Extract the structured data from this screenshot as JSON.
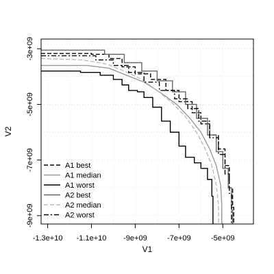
{
  "chart_data": {
    "type": "line",
    "title": "",
    "xlabel": "V1",
    "ylabel": "V2",
    "xlim": [
      -13300000000,
      -3600000000
    ],
    "ylim": [
      -9300000000,
      -2650000000
    ],
    "x_ticks": [
      {
        "value": -13000000000,
        "label": "-1.3e+10"
      },
      {
        "value": -11000000000,
        "label": "-1.1e+10"
      },
      {
        "value": -9000000000,
        "label": "-9e+09"
      },
      {
        "value": -7000000000,
        "label": "-7e+09"
      },
      {
        "value": -5000000000,
        "label": "-5e+09"
      }
    ],
    "y_ticks": [
      {
        "value": -3000000000,
        "label": "-3e+09"
      },
      {
        "value": -5000000000,
        "label": "-5e+09"
      },
      {
        "value": -7000000000,
        "label": "-7e+09"
      },
      {
        "value": -9000000000,
        "label": "-9e+09"
      }
    ],
    "grid": true,
    "legend_position": "bottom-left",
    "series": [
      {
        "name": "A1 best",
        "color": "#000000",
        "dash": "dashed",
        "step": true,
        "points": [
          [
            -13300000000,
            -3170000000
          ],
          [
            -11000000000,
            -3200000000
          ],
          [
            -10200000000,
            -3350000000
          ],
          [
            -9600000000,
            -3650000000
          ],
          [
            -9000000000,
            -3900000000
          ],
          [
            -8300000000,
            -4100000000
          ],
          [
            -7600000000,
            -4500000000
          ],
          [
            -7000000000,
            -4900000000
          ],
          [
            -6400000000,
            -5300000000
          ],
          [
            -6000000000,
            -5700000000
          ],
          [
            -5600000000,
            -6100000000
          ],
          [
            -5200000000,
            -6600000000
          ],
          [
            -4900000000,
            -7200000000
          ],
          [
            -4700000000,
            -8000000000
          ],
          [
            -4550000000,
            -8700000000
          ],
          [
            -4500000000,
            -9300000000
          ]
        ]
      },
      {
        "name": "A1 median",
        "color": "#999999",
        "dash": "solid",
        "step": false,
        "points": [
          [
            -13300000000,
            -3600000000
          ],
          [
            -11200000000,
            -3600000000
          ],
          [
            -10200000000,
            -3700000000
          ],
          [
            -9400000000,
            -3950000000
          ],
          [
            -8600000000,
            -4200000000
          ],
          [
            -7800000000,
            -4600000000
          ],
          [
            -7100000000,
            -5000000000
          ],
          [
            -6500000000,
            -5500000000
          ],
          [
            -6000000000,
            -6000000000
          ],
          [
            -5600000000,
            -6600000000
          ],
          [
            -5300000000,
            -7200000000
          ],
          [
            -5100000000,
            -7900000000
          ],
          [
            -5050000000,
            -8600000000
          ],
          [
            -5050000000,
            -9300000000
          ]
        ]
      },
      {
        "name": "A1 worst",
        "color": "#000000",
        "dash": "solid",
        "step": true,
        "points": [
          [
            -13300000000,
            -3800000000
          ],
          [
            -11500000000,
            -3850000000
          ],
          [
            -10600000000,
            -3950000000
          ],
          [
            -10000000000,
            -4100000000
          ],
          [
            -9600000000,
            -4300000000
          ],
          [
            -9300000000,
            -4500000000
          ],
          [
            -8900000000,
            -4550000000
          ],
          [
            -8600000000,
            -4750000000
          ],
          [
            -8200000000,
            -5100000000
          ],
          [
            -7800000000,
            -5600000000
          ],
          [
            -7400000000,
            -6000000000
          ],
          [
            -7000000000,
            -6500000000
          ],
          [
            -6700000000,
            -6900000000
          ],
          [
            -6300000000,
            -7100000000
          ],
          [
            -6000000000,
            -7300000000
          ],
          [
            -5700000000,
            -7700000000
          ],
          [
            -5500000000,
            -8300000000
          ],
          [
            -5450000000,
            -9300000000
          ]
        ]
      },
      {
        "name": "A2 best",
        "color": "#666666",
        "dash": "solid",
        "step": true,
        "points": [
          [
            -13300000000,
            -3050000000
          ],
          [
            -11500000000,
            -3050000000
          ],
          [
            -10400000000,
            -3200000000
          ],
          [
            -9500000000,
            -3500000000
          ],
          [
            -8700000000,
            -3800000000
          ],
          [
            -8000000000,
            -4150000000
          ],
          [
            -7300000000,
            -4550000000
          ],
          [
            -6700000000,
            -5000000000
          ],
          [
            -6200000000,
            -5500000000
          ],
          [
            -5700000000,
            -6100000000
          ],
          [
            -5300000000,
            -6700000000
          ],
          [
            -5000000000,
            -7300000000
          ],
          [
            -4750000000,
            -8000000000
          ],
          [
            -4600000000,
            -8800000000
          ],
          [
            -4550000000,
            -9300000000
          ]
        ]
      },
      {
        "name": "A2 median",
        "color": "#bbbbbb",
        "dash": "dashed",
        "step": false,
        "points": [
          [
            -13300000000,
            -3350000000
          ],
          [
            -11400000000,
            -3400000000
          ],
          [
            -10300000000,
            -3550000000
          ],
          [
            -9500000000,
            -3800000000
          ],
          [
            -8700000000,
            -4100000000
          ],
          [
            -8000000000,
            -4500000000
          ],
          [
            -7300000000,
            -4950000000
          ],
          [
            -6700000000,
            -5450000000
          ],
          [
            -6200000000,
            -6000000000
          ],
          [
            -5800000000,
            -6600000000
          ],
          [
            -5500000000,
            -7200000000
          ],
          [
            -5300000000,
            -7900000000
          ],
          [
            -5200000000,
            -8600000000
          ],
          [
            -5200000000,
            -9300000000
          ]
        ]
      },
      {
        "name": "A2 worst",
        "color": "#000000",
        "dash": "dashdot",
        "step": true,
        "points": [
          [
            -13300000000,
            -3250000000
          ],
          [
            -11600000000,
            -3250000000
          ],
          [
            -10800000000,
            -3400000000
          ],
          [
            -10000000000,
            -3600000000
          ],
          [
            -9300000000,
            -3850000000
          ],
          [
            -8600000000,
            -4200000000
          ],
          [
            -7900000000,
            -4500000000
          ],
          [
            -7200000000,
            -4800000000
          ],
          [
            -6600000000,
            -5150000000
          ],
          [
            -6100000000,
            -5600000000
          ],
          [
            -5600000000,
            -6200000000
          ],
          [
            -5200000000,
            -6800000000
          ],
          [
            -4900000000,
            -7500000000
          ],
          [
            -4700000000,
            -8200000000
          ],
          [
            -4600000000,
            -9000000000
          ],
          [
            -4600000000,
            -9300000000
          ]
        ]
      }
    ]
  }
}
